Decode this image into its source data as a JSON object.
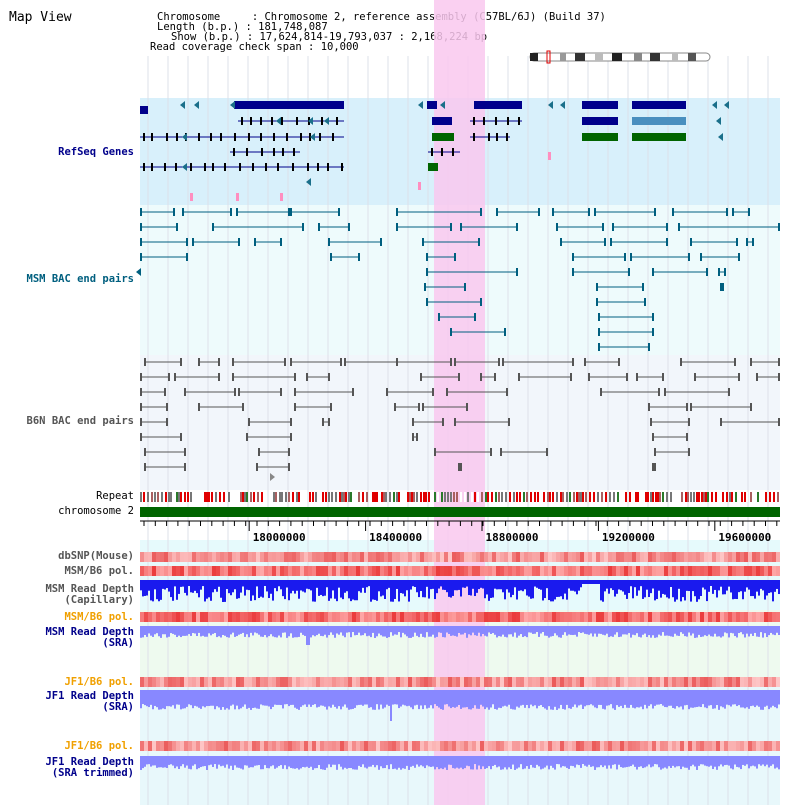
{
  "title": "Map View",
  "info": {
    "chromosome_label": "Chromosome     : ",
    "chromosome": "Chromosome 2, reference assembly (C57BL/6J) (Build 37)",
    "length_label": "Length (b.p.) : ",
    "length": "181,748,087",
    "show_label": "Show (b.p.) : ",
    "show": "17,624,814-19,793,037 : 2,168,224 bp",
    "coverage_label": "Read coverage check span : ",
    "coverage": "10,000"
  },
  "colors": {
    "refseq": "#00008b",
    "msm_bac": "#005f7f",
    "b6n_bac": "#555555",
    "repeat_red": "#e00000",
    "chromosome_bar": "#006400",
    "highlight": "#f9c8ee",
    "orange_label": "#f0a000",
    "depth_blue": "#1a1aee",
    "depth_light": "#8888ff"
  },
  "tracks": {
    "refseq": "RefSeq Genes",
    "msm_bac": "MSM BAC end pairs",
    "b6n_bac": "B6N BAC end pairs",
    "repeat": "Repeat",
    "chromosome": "chromosome 2",
    "dbsnp": "dbSNP(Mouse)",
    "msm_b6_pol_1": "MSM/B6 pol.",
    "msm_depth_cap_1": "MSM Read Depth",
    "msm_depth_cap_2": "(Capillary)",
    "msm_b6_pol_2": "MSM/B6 pol.",
    "msm_depth_sra_1": "MSM Read Depth",
    "msm_depth_sra_2": "(SRA)",
    "jf1_b6_pol_1": "JF1/B6 pol.",
    "jf1_depth_sra_1": "JF1 Read Depth",
    "jf1_depth_sra_2": "(SRA)",
    "jf1_b6_pol_2": "JF1/B6 pol.",
    "jf1_depth_trim_1": "JF1 Read Depth",
    "jf1_depth_trim_2": "(SRA trimmed)"
  },
  "ruler": {
    "ticks": [
      "18000000",
      "18400000",
      "18800000",
      "19200000",
      "19600000"
    ],
    "range_bp": [
      17624814,
      19793037
    ]
  }
}
